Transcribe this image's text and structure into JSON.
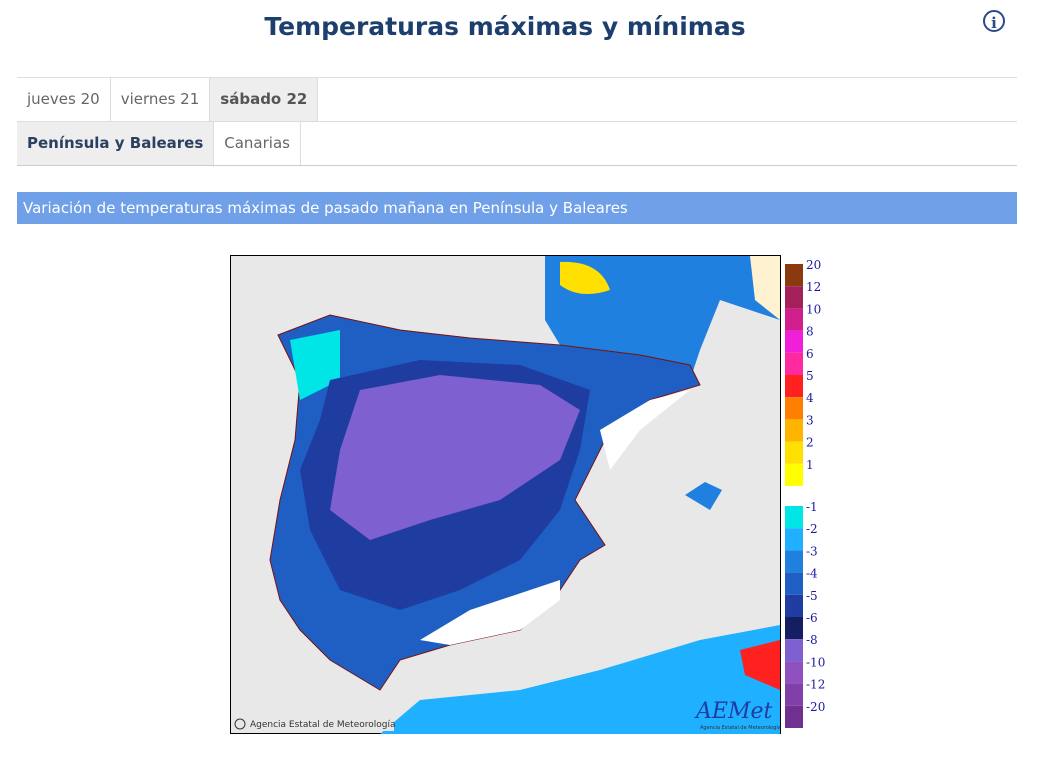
{
  "header": {
    "title": "Temperaturas máximas y mínimas"
  },
  "day_tabs": [
    "jueves 20",
    "viernes 21",
    "sábado 22"
  ],
  "region_tabs": [
    "Península y Baleares",
    "Canarias"
  ],
  "banner": "Variación de temperaturas máximas de pasado mañana en Península y Baleares",
  "map": {
    "credit": "Agencia Estatal de Meteorología",
    "logo": "AEMet",
    "legend": [
      {
        "label": "20",
        "color": "#8b3a0f"
      },
      {
        "label": "12",
        "color": "#a3205a"
      },
      {
        "label": "10",
        "color": "#d01f8c"
      },
      {
        "label": "8",
        "color": "#f020d8"
      },
      {
        "label": "6",
        "color": "#ff2aa0"
      },
      {
        "label": "5",
        "color": "#ff2020"
      },
      {
        "label": "4",
        "color": "#ff7f00"
      },
      {
        "label": "3",
        "color": "#ffb400"
      },
      {
        "label": "2",
        "color": "#ffe000"
      },
      {
        "label": "1",
        "color": "#ffff00"
      },
      {
        "label": "-1",
        "color": "#00e5e5"
      },
      {
        "label": "-2",
        "color": "#1fb0ff"
      },
      {
        "label": "-3",
        "color": "#1f80e0"
      },
      {
        "label": "-4",
        "color": "#1f5fc4"
      },
      {
        "label": "-5",
        "color": "#1f3ca0"
      },
      {
        "label": "-6",
        "color": "#141e60"
      },
      {
        "label": "-8",
        "color": "#7f60d0"
      },
      {
        "label": "-10",
        "color": "#8f50c0"
      },
      {
        "label": "-12",
        "color": "#8040a8"
      },
      {
        "label": "-20",
        "color": "#703090"
      }
    ]
  }
}
